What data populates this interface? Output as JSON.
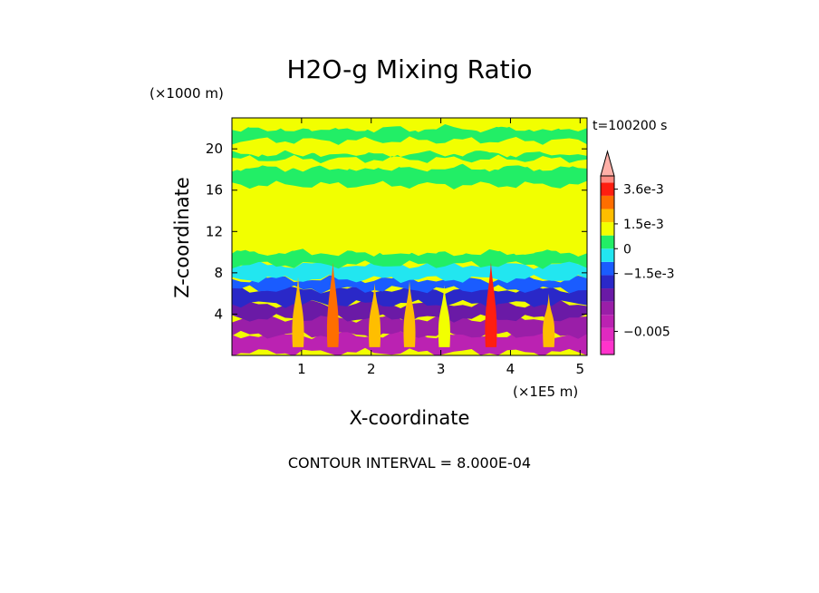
{
  "chart_data": {
    "type": "heatmap",
    "title": "H2O-g Mixing Ratio",
    "time_label": "t=100200 s",
    "xlabel": "X-coordinate",
    "xunit": "(×1E5 m)",
    "ylabel": "Z-coordinate",
    "yunit": "(×1000 m)",
    "xlim": [
      0.0,
      5.1
    ],
    "ylim": [
      0,
      23
    ],
    "x_ticks": [
      "1",
      "2",
      "3",
      "4",
      "5"
    ],
    "x_tick_values": [
      1,
      2,
      3,
      4,
      5
    ],
    "y_ticks": [
      "4",
      "8",
      "12",
      "16",
      "20"
    ],
    "y_tick_values": [
      4,
      8,
      12,
      16,
      20
    ],
    "contour_interval": "CONTOUR INTERVAL = 8.000E-04",
    "colorbar": {
      "labels": [
        "3.6e-3",
        "1.5e-3",
        "0",
        "−1.5e-3",
        "−0.005"
      ],
      "label_values": [
        0.0036,
        0.0015,
        0,
        -0.0015,
        -0.005
      ],
      "range": [
        -0.0064,
        0.0044
      ],
      "extend": "max",
      "levels": [
        {
          "lo": -0.0064,
          "hi": -0.0056,
          "color": "#ff33cc"
        },
        {
          "lo": -0.0056,
          "hi": -0.0048,
          "color": "#e02ac0"
        },
        {
          "lo": -0.0048,
          "hi": -0.004,
          "color": "#bb22b2"
        },
        {
          "lo": -0.004,
          "hi": -0.0032,
          "color": "#9a1ea8"
        },
        {
          "lo": -0.0032,
          "hi": -0.0024,
          "color": "#6a1aa6"
        },
        {
          "lo": -0.0024,
          "hi": -0.0016,
          "color": "#2a28c8"
        },
        {
          "lo": -0.0016,
          "hi": -0.0008,
          "color": "#1a5cff"
        },
        {
          "lo": -0.0008,
          "hi": 0.0,
          "color": "#22e6f0"
        },
        {
          "lo": 0.0,
          "hi": 0.0008,
          "color": "#22ee66"
        },
        {
          "lo": 0.0008,
          "hi": 0.0016,
          "color": "#f2ff00"
        },
        {
          "lo": 0.0016,
          "hi": 0.0024,
          "color": "#ffbe00"
        },
        {
          "lo": 0.0024,
          "hi": 0.0032,
          "color": "#ff6e00"
        },
        {
          "lo": 0.0032,
          "hi": 0.004,
          "color": "#ff1e10"
        },
        {
          "lo": 0.004,
          "hi": 0.0044,
          "color": "#ff8a80"
        }
      ]
    },
    "field_layers": [
      {
        "z": [
          0.3,
          2.0
        ],
        "value": -0.0045
      },
      {
        "z": [
          2.0,
          3.6
        ],
        "value": -0.0035
      },
      {
        "z": [
          3.6,
          5.0
        ],
        "value": -0.0028
      },
      {
        "z": [
          5.0,
          6.4
        ],
        "value": -0.002
      },
      {
        "z": [
          6.4,
          7.4
        ],
        "value": -0.0012
      },
      {
        "z": [
          7.4,
          8.8
        ],
        "value": -0.0004
      },
      {
        "z": [
          8.8,
          10.0
        ],
        "value": 0.0004
      },
      {
        "z": [
          10.0,
          16.5
        ],
        "value": 0.0012
      },
      {
        "z": [
          16.5,
          18.2
        ],
        "value": 0.0004
      },
      {
        "z": [
          18.2,
          19.0
        ],
        "value": 0.0012
      },
      {
        "z": [
          19.0,
          19.6
        ],
        "value": 0.0004
      },
      {
        "z": [
          19.6,
          20.8
        ],
        "value": 0.0012
      },
      {
        "z": [
          20.8,
          22.0
        ],
        "value": 0.0004
      },
      {
        "z": [
          22.0,
          23.0
        ],
        "value": 0.0012
      }
    ],
    "plumes": [
      {
        "x": 0.95,
        "top": 7.6,
        "value": 0.002
      },
      {
        "x": 1.45,
        "top": 9.0,
        "value": 0.0028
      },
      {
        "x": 2.05,
        "top": 7.0,
        "value": 0.002
      },
      {
        "x": 2.55,
        "top": 7.2,
        "value": 0.002
      },
      {
        "x": 3.05,
        "top": 6.8,
        "value": 0.0012
      },
      {
        "x": 3.72,
        "top": 9.0,
        "value": 0.0032
      },
      {
        "x": 4.55,
        "top": 6.0,
        "value": 0.002
      }
    ]
  }
}
